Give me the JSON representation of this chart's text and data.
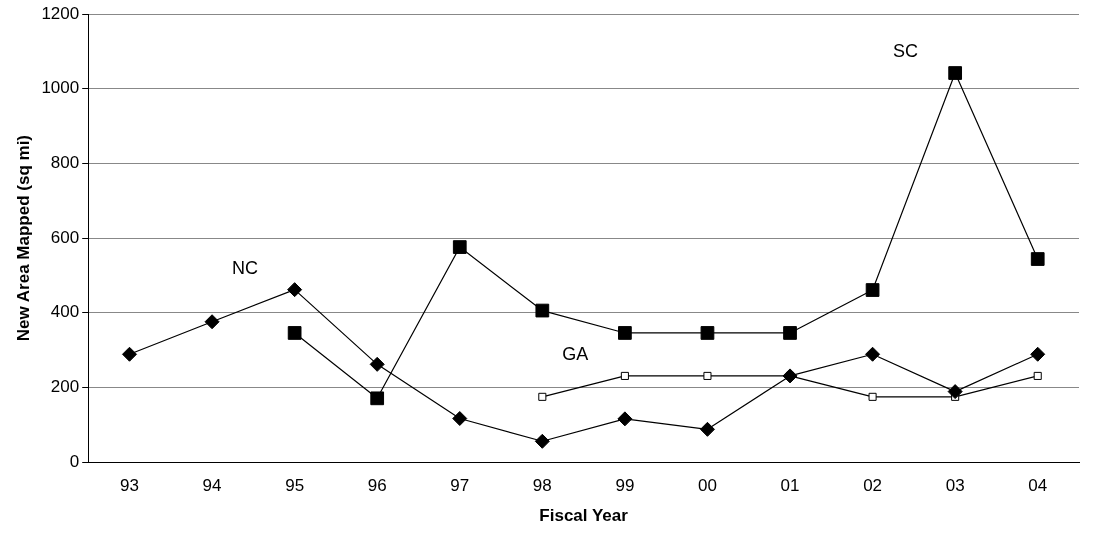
{
  "chart_data": {
    "type": "line",
    "xlabel": "Fiscal Year",
    "ylabel": "New Area Mapped (sq mi)",
    "categories": [
      "93",
      "94",
      "95",
      "96",
      "97",
      "98",
      "99",
      "00",
      "01",
      "02",
      "03",
      "04"
    ],
    "series": [
      {
        "name": "NC",
        "color": "#000000",
        "marker": "diamond",
        "values": [
          289,
          376,
          462,
          262,
          117,
          56,
          116,
          88,
          231,
          289,
          189,
          289
        ]
      },
      {
        "name": "SC",
        "color": "#000000",
        "marker": "square",
        "values": [
          null,
          null,
          346,
          171,
          576,
          406,
          346,
          346,
          346,
          461,
          1042,
          544
        ]
      },
      {
        "name": "GA",
        "color": "#000000",
        "marker": "square_open",
        "values": [
          null,
          null,
          null,
          null,
          null,
          175,
          231,
          231,
          231,
          175,
          175,
          231
        ]
      }
    ],
    "ylim": [
      0,
      1200
    ],
    "yticks": [
      0,
      200,
      400,
      600,
      800,
      1000,
      1200
    ],
    "grid": "y",
    "legend": false,
    "line_style": "solid"
  }
}
